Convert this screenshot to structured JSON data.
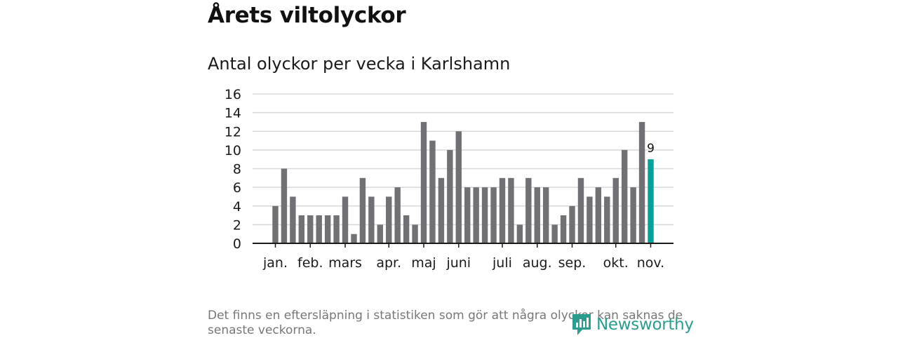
{
  "title": "Årets viltolyckor",
  "subtitle": "Antal olyckor per vecka i Karlshamn",
  "footnote": "Det finns en eftersläpning i statistiken som gör att några olyckor kan saknas de senaste veckorna.",
  "brand": "Newsworthy",
  "colors": {
    "bar": "#717075",
    "highlight": "#00a398",
    "grid": "#d8d8d8",
    "axis": "#1a1a1a",
    "brand": "#2a9d8f"
  },
  "chart_data": {
    "type": "bar",
    "title": "Antal olyckor per vecka i Karlshamn",
    "xlabel": "",
    "ylabel": "",
    "ylim": [
      0,
      16
    ],
    "yticks": [
      0,
      2,
      4,
      6,
      8,
      10,
      12,
      14,
      16
    ],
    "grid": true,
    "weeks": [
      1,
      2,
      3,
      4,
      5,
      6,
      7,
      8,
      9,
      10,
      11,
      12,
      13,
      14,
      15,
      16,
      17,
      18,
      19,
      20,
      21,
      22,
      23,
      24,
      25,
      26,
      27,
      28,
      29,
      30,
      31,
      32,
      33,
      34,
      35,
      36,
      37,
      38,
      39,
      40,
      41,
      42,
      43,
      44
    ],
    "values": [
      4,
      8,
      5,
      3,
      3,
      3,
      3,
      3,
      5,
      1,
      7,
      5,
      2,
      5,
      6,
      3,
      2,
      13,
      11,
      7,
      10,
      12,
      6,
      6,
      6,
      6,
      7,
      7,
      2,
      7,
      6,
      6,
      2,
      3,
      4,
      7,
      5,
      6,
      5,
      7,
      10,
      6,
      13,
      9
    ],
    "highlight_index": 43,
    "highlight_label": "9",
    "month_labels": [
      {
        "label": "jan.",
        "week": 1
      },
      {
        "label": "feb.",
        "week": 5
      },
      {
        "label": "mars",
        "week": 9
      },
      {
        "label": "apr.",
        "week": 14
      },
      {
        "label": "maj",
        "week": 18
      },
      {
        "label": "juni",
        "week": 22
      },
      {
        "label": "juli",
        "week": 27
      },
      {
        "label": "aug.",
        "week": 31
      },
      {
        "label": "sep.",
        "week": 35
      },
      {
        "label": "okt.",
        "week": 40
      },
      {
        "label": "nov.",
        "week": 44
      }
    ]
  }
}
